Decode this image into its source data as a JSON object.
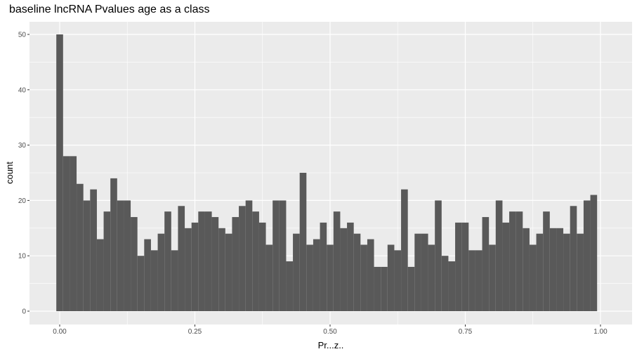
{
  "chart_data": {
    "type": "bar",
    "title": "baseline lncRNA Pvalues age as a class",
    "xlabel": "Pr...z..",
    "ylabel": "count",
    "xlim": [
      -0.0125,
      1.0125
    ],
    "ylim": [
      0,
      50
    ],
    "x_ticks": [
      0.0,
      0.25,
      0.5,
      0.75,
      1.0
    ],
    "x_tick_labels": [
      "0.00",
      "0.25",
      "0.50",
      "0.75",
      "1.00"
    ],
    "y_ticks": [
      0,
      10,
      20,
      30,
      40,
      50
    ],
    "y_tick_labels": [
      "0",
      "10",
      "20",
      "30",
      "40",
      "50"
    ],
    "bin_width": 0.0125,
    "bin_centers": [
      0.0,
      0.0125,
      0.025,
      0.0375,
      0.05,
      0.0625,
      0.075,
      0.0875,
      0.1,
      0.1125,
      0.125,
      0.1375,
      0.15,
      0.1625,
      0.175,
      0.1875,
      0.2,
      0.2125,
      0.225,
      0.2375,
      0.25,
      0.2625,
      0.275,
      0.2875,
      0.3,
      0.3125,
      0.325,
      0.3375,
      0.35,
      0.3625,
      0.375,
      0.3875,
      0.4,
      0.4125,
      0.425,
      0.4375,
      0.45,
      0.4625,
      0.475,
      0.4875,
      0.5,
      0.5125,
      0.525,
      0.5375,
      0.55,
      0.5625,
      0.575,
      0.5875,
      0.6,
      0.6125,
      0.625,
      0.6375,
      0.65,
      0.6625,
      0.675,
      0.6875,
      0.7,
      0.7125,
      0.725,
      0.7375,
      0.75,
      0.7625,
      0.775,
      0.7875,
      0.8,
      0.8125,
      0.825,
      0.8375,
      0.85,
      0.8625,
      0.875,
      0.8875,
      0.9,
      0.9125,
      0.925,
      0.9375,
      0.95,
      0.9625,
      0.975,
      0.9875,
      1.0
    ],
    "values": [
      50,
      28,
      28,
      23,
      20,
      22,
      13,
      18,
      24,
      20,
      20,
      17,
      10,
      13,
      11,
      14,
      18,
      11,
      19,
      15,
      16,
      18,
      18,
      17,
      15,
      14,
      17,
      19,
      20,
      18,
      16,
      12,
      20,
      20,
      9,
      14,
      25,
      12,
      13,
      16,
      12,
      18,
      15,
      16,
      14,
      12,
      13,
      8,
      8,
      12,
      11,
      22,
      8,
      14,
      14,
      12,
      20,
      10,
      9,
      16,
      16,
      11,
      11,
      17,
      12,
      20,
      16,
      18,
      18,
      15,
      12,
      14,
      18,
      15,
      15,
      14,
      19,
      14,
      20,
      21,
      0
    ],
    "bar_color": "#595959",
    "panel_background": "#ebebeb",
    "grid": true,
    "grid_color": "#ffffff"
  }
}
